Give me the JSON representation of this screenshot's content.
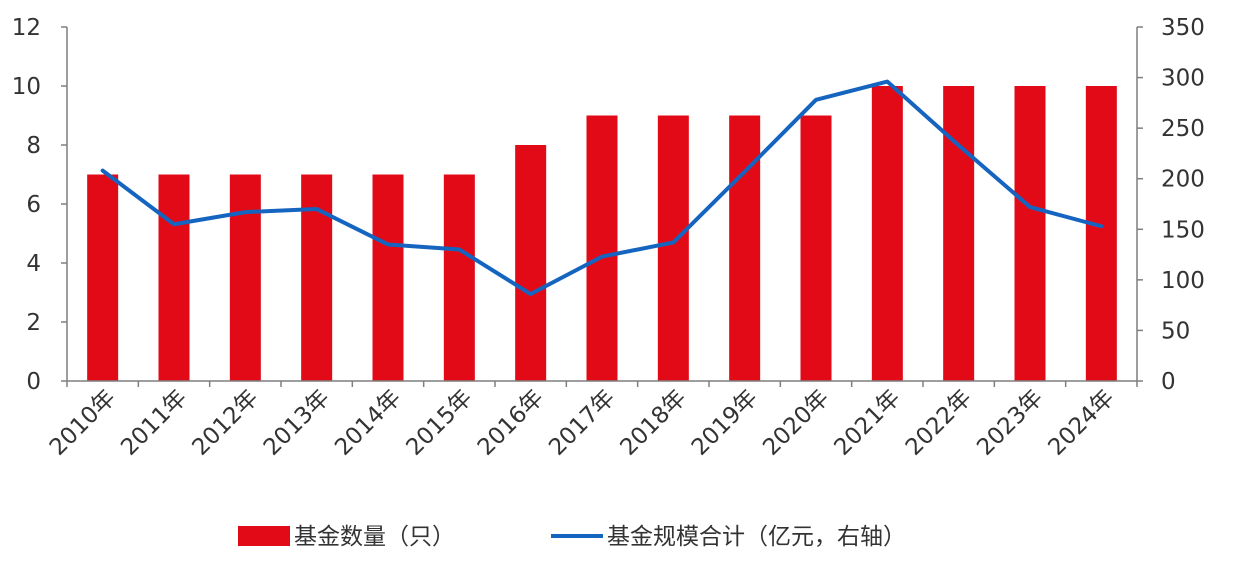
{
  "chart_data": {
    "type": "bar",
    "categories": [
      "2010年",
      "2011年",
      "2012年",
      "2013年",
      "2014年",
      "2015年",
      "2016年",
      "2017年",
      "2018年",
      "2019年",
      "2020年",
      "2021年",
      "2022年",
      "2023年",
      "2024年"
    ],
    "series": [
      {
        "name": "基金数量（只）",
        "type": "bar",
        "axis": "left",
        "color": "#e10a16",
        "values": [
          7,
          7,
          7,
          7,
          7,
          7,
          8,
          9,
          9,
          9,
          9,
          10,
          10,
          10,
          10
        ]
      },
      {
        "name": "基金规模合计（亿元，右轴）",
        "type": "line",
        "axis": "right",
        "color": "#1565c0",
        "values": [
          208,
          155,
          167,
          170,
          135,
          130,
          86,
          123,
          137,
          207,
          278,
          296,
          233,
          172,
          153
        ]
      }
    ],
    "ylim_left": [
      0,
      12
    ],
    "yticks_left": [
      "0",
      "2",
      "4",
      "6",
      "8",
      "10",
      "12"
    ],
    "ylim_right": [
      0,
      350
    ],
    "yticks_right": [
      "0",
      "50",
      "100",
      "150",
      "200",
      "250",
      "300",
      "350"
    ],
    "grid": false,
    "legend_position": "bottom"
  }
}
